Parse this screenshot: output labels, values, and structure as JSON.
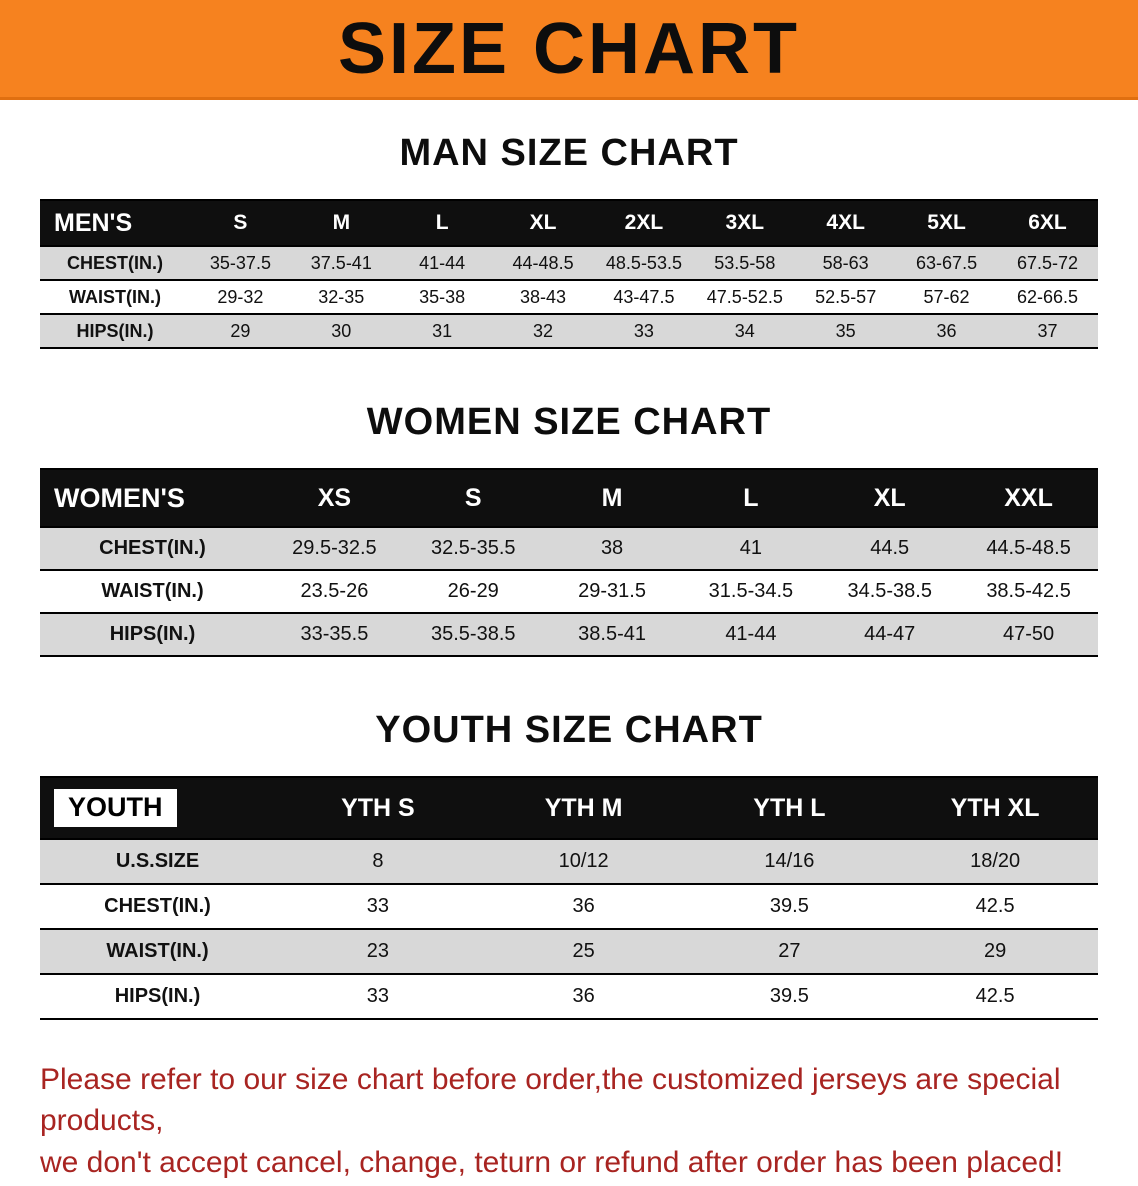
{
  "banner": {
    "title": "SIZE CHART"
  },
  "colors": {
    "banner_bg": "#F6821F",
    "note_color": "#A82421",
    "header_bg": "#0F0F0F",
    "row_gray": "#D8D8D8"
  },
  "sections": [
    {
      "heading": "MAN SIZE CHART",
      "table": {
        "header_label": "MEN'S",
        "header_label_boxed": false,
        "columns": [
          "S",
          "M",
          "L",
          "XL",
          "2XL",
          "3XL",
          "4XL",
          "5XL",
          "6XL"
        ],
        "rows": [
          {
            "label": "CHEST(IN.)",
            "values": [
              "35-37.5",
              "37.5-41",
              "41-44",
              "44-48.5",
              "48.5-53.5",
              "53.5-58",
              "58-63",
              "63-67.5",
              "67.5-72"
            ]
          },
          {
            "label": "WAIST(IN.)",
            "values": [
              "29-32",
              "32-35",
              "35-38",
              "38-43",
              "43-47.5",
              "47.5-52.5",
              "52.5-57",
              "57-62",
              "62-66.5"
            ]
          },
          {
            "label": "HIPS(IN.)",
            "values": [
              "29",
              "30",
              "31",
              "32",
              "33",
              "34",
              "35",
              "36",
              "37"
            ]
          }
        ]
      }
    },
    {
      "heading": "WOMEN SIZE CHART",
      "table": {
        "header_label": "WOMEN'S",
        "header_label_boxed": false,
        "columns": [
          "XS",
          "S",
          "M",
          "L",
          "XL",
          "XXL"
        ],
        "rows": [
          {
            "label": "CHEST(IN.)",
            "values": [
              "29.5-32.5",
              "32.5-35.5",
              "38",
              "41",
              "44.5",
              "44.5-48.5"
            ]
          },
          {
            "label": "WAIST(IN.)",
            "values": [
              "23.5-26",
              "26-29",
              "29-31.5",
              "31.5-34.5",
              "34.5-38.5",
              "38.5-42.5"
            ]
          },
          {
            "label": "HIPS(IN.)",
            "values": [
              "33-35.5",
              "35.5-38.5",
              "38.5-41",
              "41-44",
              "44-47",
              "47-50"
            ]
          }
        ]
      }
    },
    {
      "heading": "YOUTH SIZE CHART",
      "table": {
        "header_label": "YOUTH",
        "header_label_boxed": true,
        "columns": [
          "YTH S",
          "YTH M",
          "YTH L",
          "YTH XL"
        ],
        "rows": [
          {
            "label": "U.S.SIZE",
            "values": [
              "8",
              "10/12",
              "14/16",
              "18/20"
            ]
          },
          {
            "label": "CHEST(IN.)",
            "values": [
              "33",
              "36",
              "39.5",
              "42.5"
            ]
          },
          {
            "label": "WAIST(IN.)",
            "values": [
              "23",
              "25",
              "27",
              "29"
            ]
          },
          {
            "label": "HIPS(IN.)",
            "values": [
              "33",
              "36",
              "39.5",
              "42.5"
            ]
          }
        ]
      }
    }
  ],
  "note": {
    "lines": [
      "Please refer to our size chart before order,the customized jerseys are special products,",
      "we don't accept cancel, change, teturn or refund after order has been placed!"
    ]
  }
}
